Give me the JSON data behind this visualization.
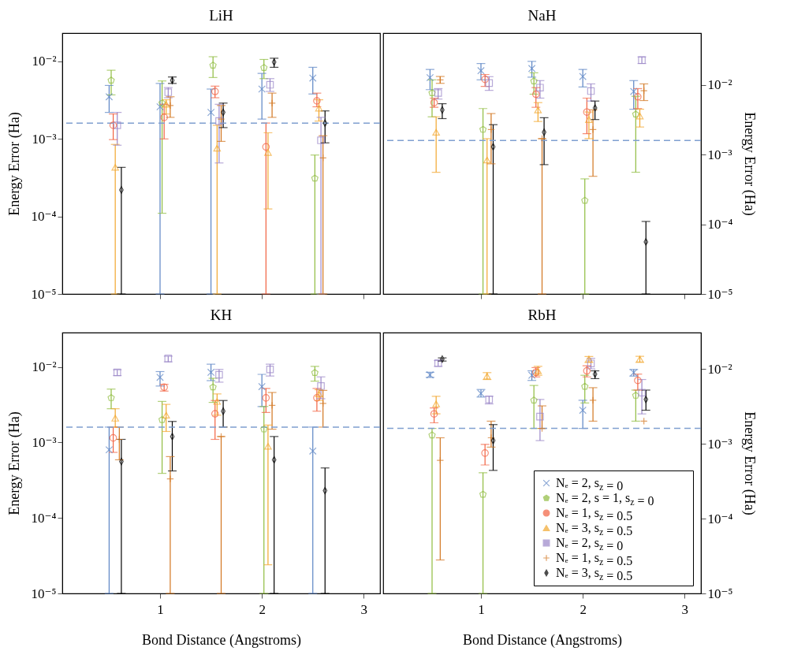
{
  "chart_data": [
    {
      "type": "scatter",
      "title": "LiH",
      "ylabel": "Energy Error (Ha)",
      "log": "y",
      "tick_labels": "y",
      "xlim": [
        0.04,
        3.16
      ],
      "xticks": [
        1,
        2,
        3
      ],
      "ylim": [
        1e-05,
        0.0232
      ],
      "yticks": [
        {
          "value": 1e-05,
          "label": "10⁻⁵"
        },
        {
          "value": 0.0001,
          "label": "10⁻⁴"
        },
        {
          "value": 0.001,
          "label": "10⁻³"
        },
        {
          "value": 0.01,
          "label": "10⁻²"
        }
      ],
      "ref_lines": [
        {
          "axis": "y",
          "value": 0.0016,
          "color": "#7f9fd0",
          "line_style": "dashed"
        }
      ],
      "series": [
        {
          "color": "#5b84c4",
          "marker": "x",
          "x": [
            0.5,
            1,
            1.5,
            2,
            2.5
          ],
          "values": [
            0.0035,
            0.0026,
            0.0022,
            0.0044,
            0.0061
          ],
          "errors": [
            [
              0.0022,
              0.0049
            ],
            [
              1e-05,
              0.0052
            ],
            [
              1e-05,
              0.0044
            ],
            [
              0.0018,
              0.007
            ],
            [
              0.0038,
              0.0084
            ]
          ]
        },
        {
          "color": "#8fbc3f",
          "x": [
            0.52,
            1.02,
            1.52,
            2.02,
            2.52
          ],
          "values": [
            0.0057,
            0.0029,
            0.0089,
            0.0083,
            0.00031
          ],
          "errors": [
            [
              0.0037,
              0.0077
            ],
            [
              0.00011,
              0.0056
            ],
            [
              0.0062,
              0.0115
            ],
            [
              0.006,
              0.0106
            ],
            [
              1e-05,
              0.00062
            ]
          ]
        },
        {
          "color": "#f26140",
          "marker": "circle",
          "x": [
            0.54,
            1.04,
            1.54,
            2.04,
            2.54
          ],
          "values": [
            0.0015,
            0.0019,
            0.0041,
            0.00079,
            0.0031
          ],
          "errors": [
            [
              0.00098,
              0.0021
            ],
            [
              0.001,
              0.0028
            ],
            [
              0.0034,
              0.0048
            ],
            [
              1e-05,
              0.0016
            ],
            [
              0.0026,
              0.0039
            ]
          ]
        },
        {
          "color": "#f2a72e",
          "marker": "triangle",
          "x": [
            0.56,
            1.06,
            1.56,
            2.06,
            2.56
          ],
          "values": [
            0.00043,
            0.0028,
            0.00076,
            0.00067,
            0.0025
          ],
          "errors": [
            [
              1e-05,
              0.00085
            ],
            [
              0.0021,
              0.0032
            ],
            [
              1e-05,
              0.0015
            ],
            [
              0.000125,
              0.0012
            ],
            [
              0.0017,
              0.0032
            ]
          ]
        },
        {
          "color": "#9a86c8",
          "marker": "square",
          "x": [
            0.58,
            1.08,
            1.58,
            2.08,
            2.58
          ],
          "values": [
            0.0015,
            0.004,
            0.0017,
            0.005,
            0.00096
          ],
          "errors": [
            [
              0.00083,
              0.0022
            ],
            [
              0.0034,
              0.0046
            ],
            [
              0.00049,
              0.0028
            ],
            [
              0.0041,
              0.006
            ],
            [
              1e-05,
              0.0019
            ]
          ]
        },
        {
          "color": "#d2751e",
          "marker": "plus",
          "x": [
            null,
            1.1,
            1.6,
            2.1,
            2.6
          ],
          "values": [
            null,
            0.0027,
            0.0018,
            0.0029,
            0.00057
          ],
          "errors": [
            null,
            [
              0.0019,
              0.0035
            ],
            [
              0.00093,
              0.0027
            ],
            [
              0.0019,
              0.0039
            ],
            [
              1e-05,
              0.0011
            ]
          ]
        },
        {
          "color": "#000000",
          "marker": "diamond",
          "x": [
            0.62,
            1.12,
            1.62,
            2.12,
            2.62
          ],
          "values": [
            0.00022,
            0.0057,
            0.0022,
            0.0098,
            0.0016
          ],
          "errors": [
            [
              1e-05,
              0.00043
            ],
            [
              0.0052,
              0.0063
            ],
            [
              0.0014,
              0.0029
            ],
            [
              0.0084,
              0.011
            ],
            [
              0.00089,
              0.0023
            ]
          ]
        }
      ]
    },
    {
      "type": "scatter",
      "title": "NaH",
      "y2label": "Energy Error (Ha)",
      "log": "y2",
      "tick_labels": "y",
      "xlim": [
        0.04,
        3.16
      ],
      "xticks": [
        1,
        2,
        3
      ],
      "y2lim": [
        1e-05,
        0.0558
      ],
      "y2ticks": [
        {
          "value": 1e-05,
          "label": "10⁻⁵"
        },
        {
          "value": 0.0001,
          "label": "10⁻⁴"
        },
        {
          "value": 0.001,
          "label": "10⁻³"
        },
        {
          "value": 0.01,
          "label": "10⁻²"
        }
      ],
      "ref_lines": [
        {
          "axis": "y2",
          "value": 0.0016,
          "color": "#7f9fd0",
          "line_style": "dashed"
        }
      ],
      "series": [
        {
          "axis": "y2",
          "color": "#5b84c4",
          "marker": "x",
          "x": [
            0.5,
            1,
            1.5,
            2,
            2.5
          ],
          "values": [
            0.0128,
            0.0161,
            0.0173,
            0.0133,
            0.0081
          ],
          "errors": [
            [
              0.0086,
              0.0168
            ],
            [
              0.0119,
              0.0204
            ],
            [
              0.013,
              0.0219
            ],
            [
              0.0094,
              0.0168
            ],
            [
              0.0045,
              0.0116
            ]
          ]
        },
        {
          "axis": "y2",
          "color": "#8fbc3f",
          "x": [
            0.52,
            1.02,
            1.52,
            2.02,
            2.52
          ],
          "values": [
            0.0077,
            0.0023,
            0.0114,
            0.00022,
            0.0038
          ],
          "errors": [
            [
              0.0035,
              0.0119
            ],
            [
              1e-05,
              0.0046
            ],
            [
              0.0074,
              0.015
            ],
            [
              1e-05,
              0.00045
            ],
            [
              0.00056,
              0.0069
            ]
          ]
        },
        {
          "axis": "y2",
          "color": "#f26140",
          "marker": "circle",
          "x": [
            0.54,
            1.04,
            1.54,
            2.04,
            2.54
          ],
          "values": [
            0.0056,
            0.0121,
            0.0074,
            0.0041,
            0.0068
          ],
          "errors": [
            [
              0.0048,
              0.0065
            ],
            [
              0.0096,
              0.0142
            ],
            [
              0.0048,
              0.0092
            ],
            [
              0.002,
              0.0065
            ],
            [
              0.0046,
              0.0089
            ]
          ]
        },
        {
          "axis": "y2",
          "color": "#f2a72e",
          "marker": "triangle",
          "x": [
            0.56,
            1.06,
            1.56,
            2.06,
            2.56
          ],
          "values": [
            0.0021,
            0.00084,
            0.0044,
            0.0032,
            0.0036
          ],
          "errors": [
            [
              0.00056,
              0.0035
            ],
            [
              1e-05,
              0.0017
            ],
            [
              0.003,
              0.0056
            ],
            [
              0.0017,
              0.0041
            ],
            [
              0.0025,
              0.0045
            ]
          ]
        },
        {
          "axis": "y2",
          "color": "#9a86c8",
          "marker": "square",
          "x": [
            0.58,
            1.08,
            1.58,
            2.08,
            2.58
          ],
          "values": [
            0.0077,
            0.0107,
            0.0092,
            0.0082,
            0.0228
          ],
          "errors": [
            [
              0.0063,
              0.0089
            ],
            [
              0.0084,
              0.0132
            ],
            [
              0.0065,
              0.0116
            ],
            [
              0.0059,
              0.0104
            ],
            [
              0.0204,
              0.0254
            ]
          ]
        },
        {
          "axis": "y2",
          "color": "#d2751e",
          "marker": "plus",
          "x": [
            0.6,
            1.1,
            1.6,
            2.1,
            2.6
          ],
          "values": [
            0.0119,
            0.0023,
            0.0017,
            0.0023,
            0.0083
          ],
          "errors": [
            [
              0.0106,
              0.0133
            ],
            [
              0.00074,
              0.0039
            ],
            [
              1e-05,
              0.0017
            ],
            [
              0.00049,
              0.0044
            ],
            [
              0.006,
              0.0104
            ]
          ]
        },
        {
          "axis": "y2",
          "color": "#000000",
          "marker": "diamond",
          "x": [
            0.62,
            1.12,
            1.62,
            2.12,
            2.62
          ],
          "values": [
            0.0044,
            0.0013,
            0.0021,
            0.0047,
            5.6e-05
          ],
          "errors": [
            [
              0.0033,
              0.0054
            ],
            [
              1e-05,
              0.0027
            ],
            [
              0.00072,
              0.0034
            ],
            [
              0.0032,
              0.0059
            ],
            [
              1e-05,
              0.00011
            ]
          ]
        }
      ]
    },
    {
      "type": "scatter",
      "title": "KH",
      "xlabel": "Bond Distance (Angstroms)",
      "ylabel": "Energy Error (Ha)",
      "log": "y",
      "xlim": [
        0.04,
        3.16
      ],
      "xticks": [
        1,
        2,
        3
      ],
      "ylim": [
        1e-05,
        0.0286
      ],
      "yticks": [
        {
          "value": 1e-05,
          "label": "10⁻⁵"
        },
        {
          "value": 0.0001,
          "label": "10⁻⁴"
        },
        {
          "value": 0.001,
          "label": "10⁻³"
        },
        {
          "value": 0.01,
          "label": "10⁻²"
        }
      ],
      "ref_lines": [
        {
          "axis": "y",
          "value": 0.0016,
          "color": "#7f9fd0",
          "line_style": "dashed"
        }
      ],
      "series": [
        {
          "color": "#5b84c4",
          "marker": "x",
          "x": [
            0.5,
            1,
            1.5,
            2,
            2.5
          ],
          "values": [
            0.0008,
            0.0073,
            0.0085,
            0.0055,
            0.00077
          ],
          "errors": [
            [
              1e-05,
              0.0016
            ],
            [
              0.0056,
              0.0087
            ],
            [
              0.0066,
              0.0109
            ],
            [
              0.003,
              0.008
            ],
            [
              1e-05,
              0.0016
            ]
          ]
        },
        {
          "color": "#8fbc3f",
          "x": [
            0.52,
            1.02,
            1.52,
            2.02,
            2.52
          ],
          "values": [
            0.0039,
            0.002,
            0.0054,
            0.0015,
            0.0084
          ],
          "errors": [
            [
              0.0028,
              0.0051
            ],
            [
              0.00039,
              0.0035
            ],
            [
              0.0034,
              0.0071
            ],
            [
              1e-05,
              0.003
            ],
            [
              0.0065,
              0.0102
            ]
          ]
        },
        {
          "color": "#f26140",
          "marker": "circle",
          "x": [
            0.54,
            1.04,
            1.54,
            2.04,
            2.54
          ],
          "values": [
            0.00115,
            0.0054,
            0.0024,
            0.0039,
            0.0039
          ],
          "errors": [
            [
              0.00074,
              0.0016
            ],
            [
              0.0048,
              0.0059
            ],
            [
              0.0011,
              0.0036
            ],
            [
              0.0025,
              0.0052
            ],
            [
              0.0026,
              0.0052
            ]
          ]
        },
        {
          "color": "#f2a72e",
          "marker": "triangle",
          "x": [
            0.56,
            1.06,
            1.56,
            2.06,
            2.56
          ],
          "values": [
            0.0021,
            0.0023,
            0.0035,
            0.00089,
            0.0044
          ],
          "errors": [
            [
              0.0016,
              0.0028
            ],
            [
              0.0014,
              0.0032
            ],
            [
              0.0023,
              0.0044
            ],
            [
              2.4e-05,
              0.0017
            ],
            [
              0.0036,
              0.005
            ]
          ]
        },
        {
          "color": "#9a86c8",
          "marker": "square",
          "x": [
            0.58,
            1.08,
            1.58,
            2.08,
            2.58
          ],
          "values": [
            0.0085,
            0.013,
            0.0079,
            0.0093,
            0.0056
          ],
          "errors": [
            [
              0.0077,
              0.0092
            ],
            [
              0.0117,
              0.0139
            ],
            [
              0.0063,
              0.0093
            ],
            [
              0.0076,
              0.0109
            ],
            [
              0.0038,
              0.0074
            ]
          ]
        },
        {
          "color": "#d2751e",
          "marker": "plus",
          "x": [
            0.6,
            1.1,
            1.6,
            2.1,
            2.6
          ],
          "values": [
            0.0011,
            0.00033,
            0.0012,
            0.0031,
            0.0033
          ],
          "errors": [
            [
              0.00059,
              0.0016
            ],
            [
              1e-05,
              0.00065
            ],
            [
              1e-05,
              0.0012
            ],
            [
              0.0015,
              0.0046
            ],
            [
              0.0016,
              0.0049
            ]
          ]
        },
        {
          "color": "#000000",
          "marker": "diamond",
          "x": [
            0.62,
            1.12,
            1.62,
            2.12,
            2.62
          ],
          "values": [
            0.00056,
            0.0012,
            0.0026,
            0.00059,
            0.00023
          ],
          "errors": [
            [
              1e-05,
              0.0011
            ],
            [
              0.00042,
              0.0019
            ],
            [
              0.0016,
              0.0036
            ],
            [
              1e-05,
              0.0012
            ],
            [
              1e-05,
              0.00046
            ]
          ]
        }
      ]
    },
    {
      "type": "scatter",
      "title": "RbH",
      "xlabel": "Bond Distance (Angstroms)",
      "y2label": "Energy Error (Ha)",
      "log": "y2",
      "legend": "bottom right",
      "xlim": [
        0.04,
        3.16
      ],
      "xticks": [
        1,
        2,
        3
      ],
      "y2lim": [
        1e-05,
        0.0305
      ],
      "y2ticks": [
        {
          "value": 1e-05,
          "label": "10⁻⁵"
        },
        {
          "value": 0.0001,
          "label": "10⁻⁴"
        },
        {
          "value": 0.001,
          "label": "10⁻³"
        },
        {
          "value": 0.01,
          "label": "10⁻²"
        }
      ],
      "ref_lines": [
        {
          "axis": "y2",
          "value": 0.0016,
          "color": "#7f9fd0",
          "line_style": "dashed"
        }
      ],
      "series": [
        {
          "axis": "y2",
          "name": "Nₑ = 2, s$_{z}$ = 0",
          "color": "#5b84c4",
          "marker": "x",
          "x": [
            0.5,
            1,
            1.5,
            2,
            2.5
          ],
          "values": [
            0.0083,
            0.0047,
            0.0082,
            0.0028,
            0.0089
          ],
          "errors": [
            [
              0.0077,
              0.009
            ],
            [
              0.0042,
              0.0053
            ],
            [
              0.007,
              0.0094
            ],
            [
              0.0016,
              0.0038
            ],
            [
              0.008,
              0.0098
            ]
          ]
        },
        {
          "axis": "y2",
          "name": "Nₑ = 2, s = 1, s$_{z}$ = 0",
          "color": "#8fbc3f",
          "x": [
            0.52,
            1.02,
            1.52,
            2.02,
            2.52
          ],
          "values": [
            0.0013,
            0.00021,
            0.0038,
            0.0058,
            0.0044
          ],
          "errors": [
            [
              1e-05,
              0.0016
            ],
            [
              1e-05,
              0.00041
            ],
            [
              0.0016,
              0.006
            ],
            [
              0.0035,
              0.0082
            ],
            [
              0.002,
              0.0052
            ]
          ]
        },
        {
          "axis": "y2",
          "name": "Nₑ = 1, s$_{z}$ = 0.5",
          "color": "#f26140",
          "marker": "circle",
          "x": [
            0.54,
            1.04,
            1.54,
            2.04,
            2.54
          ],
          "values": [
            0.0025,
            0.00075,
            0.009,
            0.0094,
            0.007
          ],
          "errors": [
            [
              0.0019,
              0.003
            ],
            [
              0.00052,
              0.00098
            ],
            [
              0.0078,
              0.0104
            ],
            [
              0.0078,
              0.011
            ],
            [
              0.0052,
              0.0085
            ]
          ]
        },
        {
          "axis": "y2",
          "name": "Nₑ = 3, s$_{z}$ = 0.5",
          "color": "#f2a72e",
          "marker": "triangle",
          "x": [
            0.56,
            1.06,
            1.56,
            2.06,
            2.56
          ],
          "values": [
            0.0034,
            0.008,
            0.0094,
            0.0135,
            0.0135
          ],
          "errors": [
            [
              0.0025,
              0.0043
            ],
            [
              0.0072,
              0.0089
            ],
            [
              0.0082,
              0.0108
            ],
            [
              0.0122,
              0.0146
            ],
            [
              0.0122,
              0.0147
            ]
          ]
        },
        {
          "axis": "y2",
          "name": "Nₑ = 2, s$_{z}$ = 0",
          "color": "#9a86c8",
          "marker": "square",
          "x": [
            0.58,
            1.08,
            1.58,
            2.08,
            2.58
          ],
          "values": [
            0.0119,
            0.0039,
            0.0023,
            0.0118,
            0.0048
          ],
          "errors": [
            [
              0.0108,
              0.0129
            ],
            [
              0.0034,
              0.0043
            ],
            [
              0.0011,
              0.0039
            ],
            [
              0.01,
              0.0138
            ],
            [
              0.0025,
              0.0072
            ]
          ]
        },
        {
          "axis": "y2",
          "name": "Nₑ = 1, s$_{z}$ = 0.5",
          "color": "#d2751e",
          "marker": "plus",
          "x": [
            0.6,
            1.1,
            1.6,
            2.1,
            2.6
          ],
          "values": [
            0.0006,
            0.0012,
            0.0016,
            0.0038,
            0.002
          ],
          "errors": [
            [
              2.8e-05,
              0.0012
            ],
            [
              0.0009,
              0.002
            ],
            [
              0.0016,
              0.0032
            ],
            [
              0.002,
              0.0056
            ],
            null
          ]
        },
        {
          "axis": "y2",
          "name": "Nₑ = 3, s$_{z}$ = 0.5",
          "color": "#000000",
          "marker": "diamond",
          "x": [
            0.62,
            1.12,
            null,
            2.12,
            2.62
          ],
          "values": [
            0.0135,
            0.0011,
            null,
            0.0085,
            0.0039
          ],
          "errors": [
            [
              0.0127,
              0.014
            ],
            [
              0.00044,
              0.0018
            ],
            null,
            [
              0.0074,
              0.0094
            ],
            [
              0.0028,
              0.0052
            ]
          ]
        }
      ]
    }
  ]
}
